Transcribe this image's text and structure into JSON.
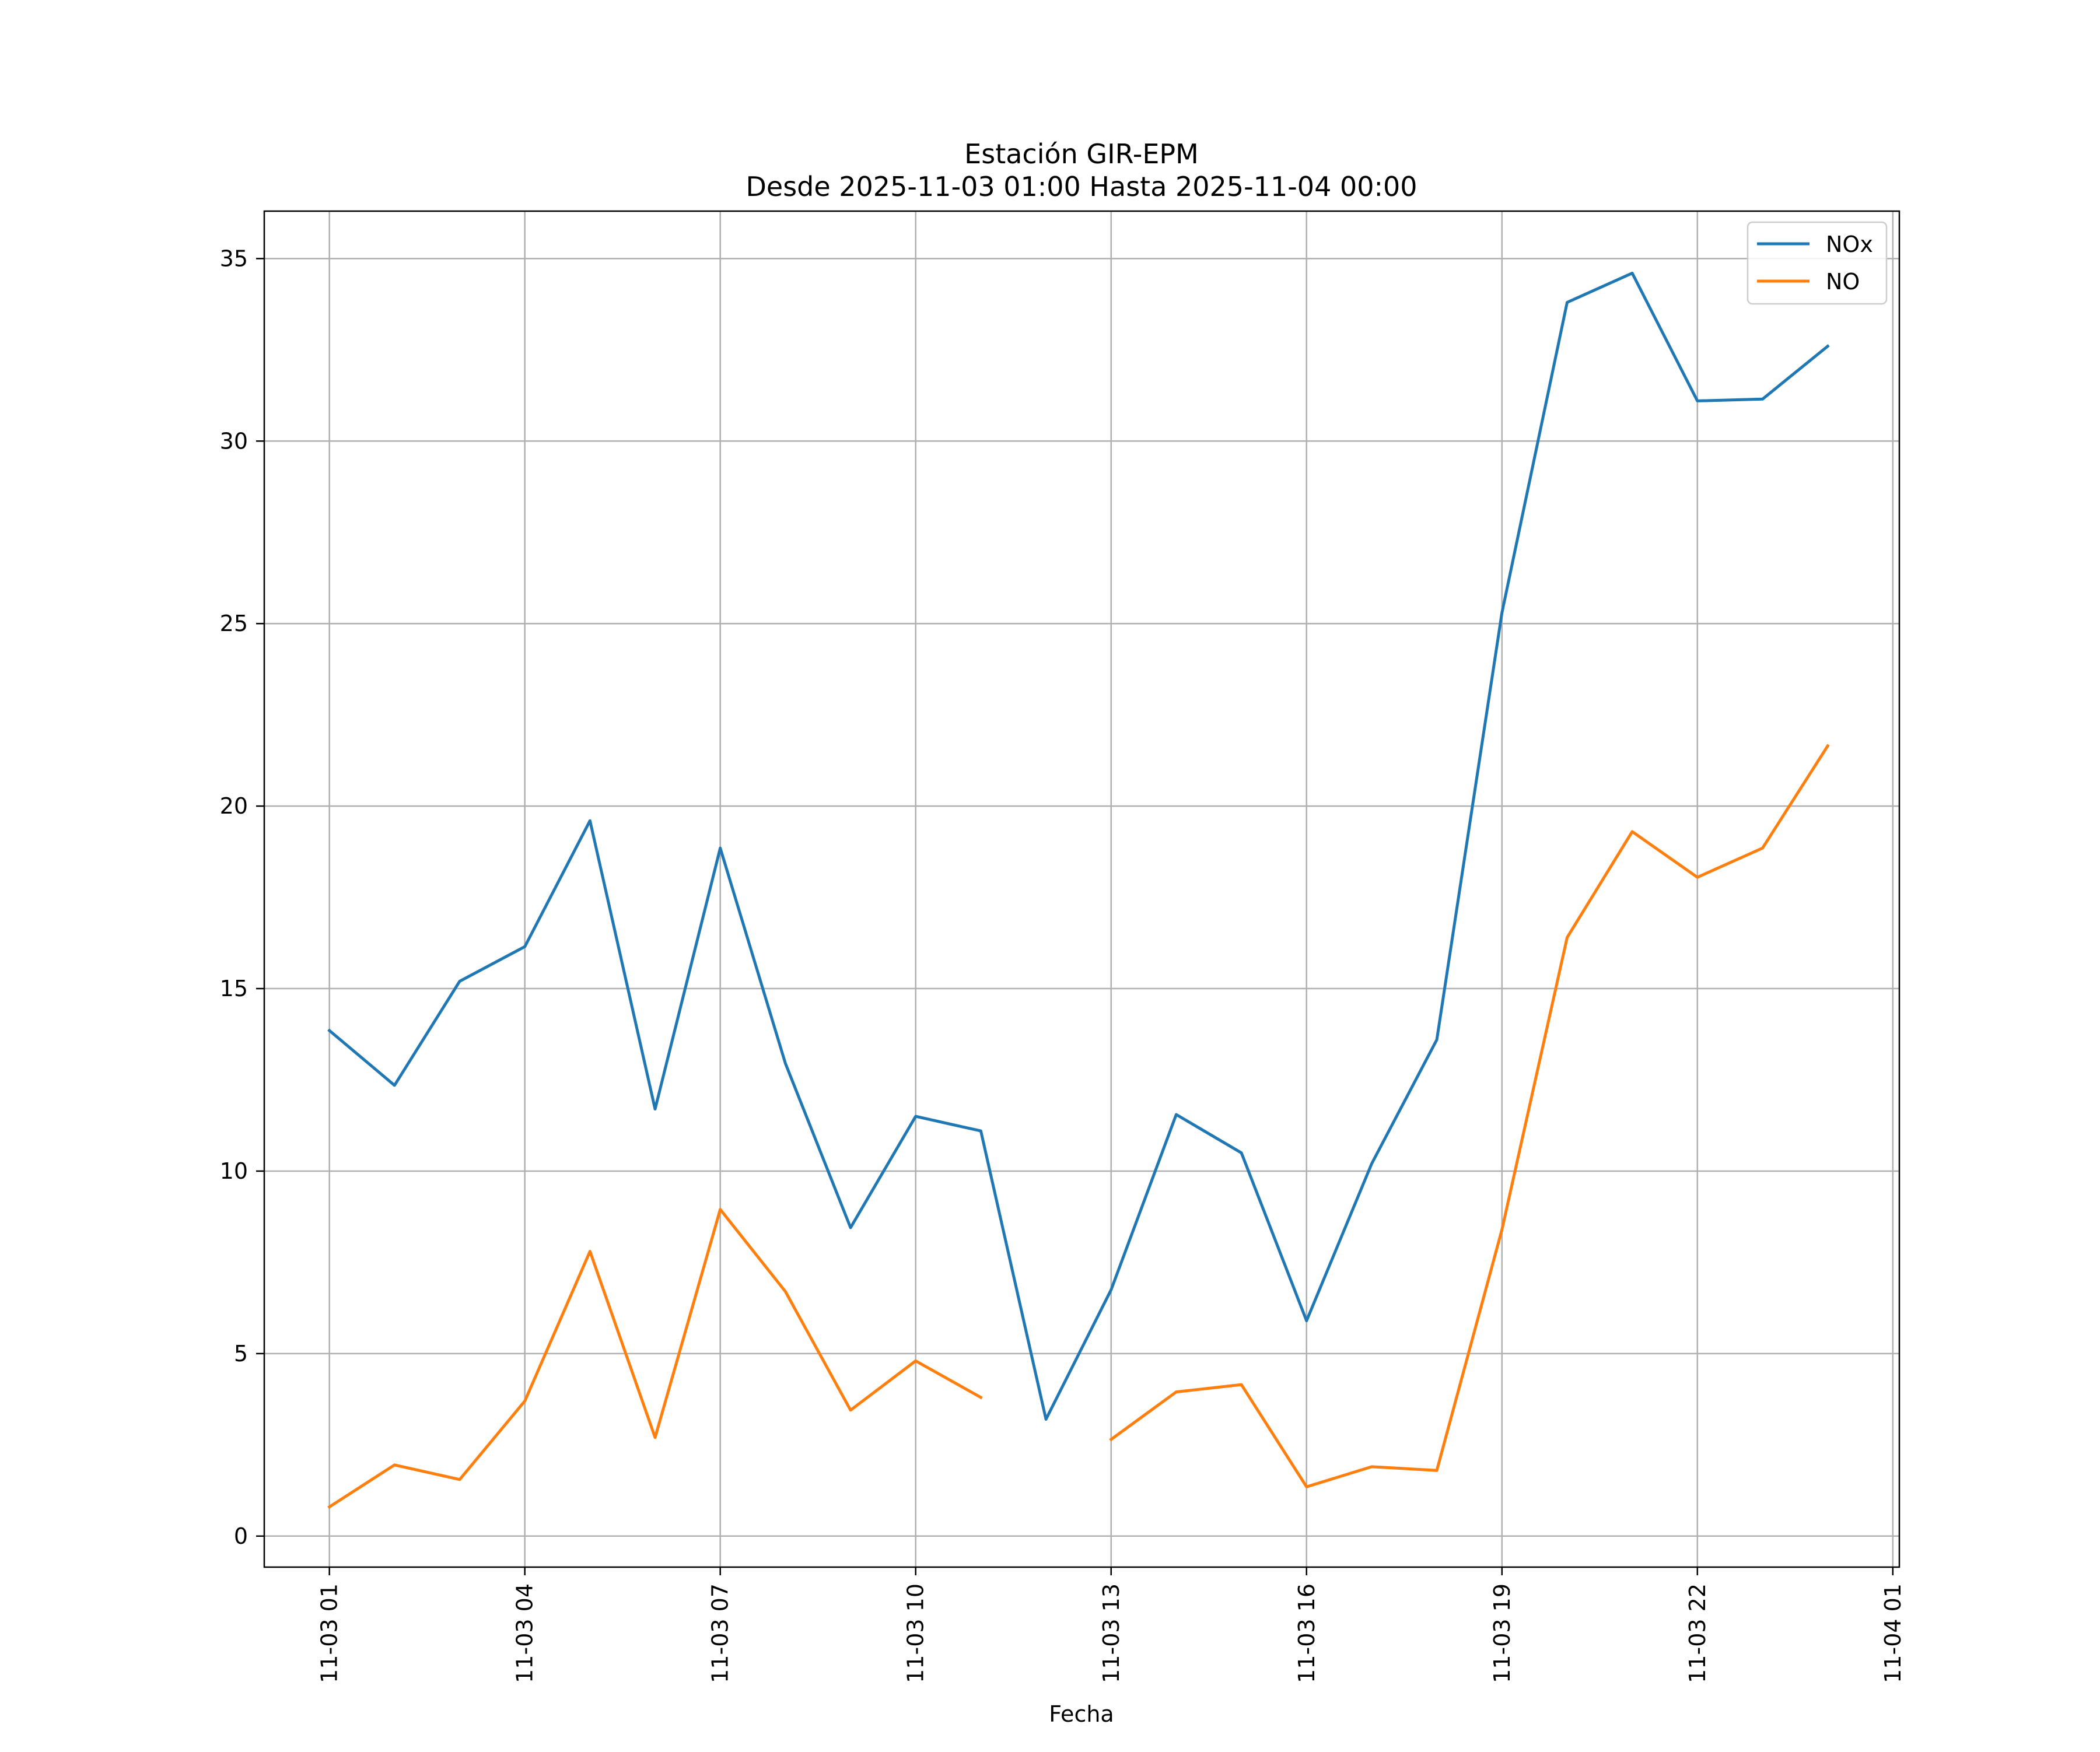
{
  "chart_data": {
    "type": "line",
    "title": [
      "Estación GIR-EPM",
      "Desde 2025-11-03 01:00 Hasta 2025-11-04 00:00"
    ],
    "xlabel": "Fecha",
    "ylabel": "",
    "x": [
      "11-03 01",
      "11-03 02",
      "11-03 03",
      "11-03 04",
      "11-03 05",
      "11-03 06",
      "11-03 07",
      "11-03 08",
      "11-03 09",
      "11-03 10",
      "11-03 11",
      "11-03 12",
      "11-03 13",
      "11-03 14",
      "11-03 15",
      "11-03 16",
      "11-03 17",
      "11-03 18",
      "11-03 19",
      "11-03 20",
      "11-03 21",
      "11-03 22",
      "11-03 23",
      "11-04 00"
    ],
    "x_ticks": [
      "11-03 01",
      "11-03 04",
      "11-03 07",
      "11-03 10",
      "11-03 13",
      "11-03 16",
      "11-03 19",
      "11-03 22",
      "11-04 01"
    ],
    "x_range": [
      "11-03 00:00",
      "11-04 01:06"
    ],
    "y_ticks": [
      0,
      5,
      10,
      15,
      20,
      25,
      30,
      35
    ],
    "ylim": [
      -0.85,
      36.3
    ],
    "grid": true,
    "legend_position": "top-right",
    "series": [
      {
        "name": "NOx",
        "color": "#1f77b4",
        "values": [
          13.85,
          12.35,
          15.2,
          16.15,
          19.6,
          11.7,
          18.85,
          12.95,
          8.45,
          11.5,
          11.1,
          3.2,
          6.75,
          11.55,
          10.5,
          5.9,
          10.2,
          13.6,
          25.3,
          33.8,
          34.6,
          31.1,
          31.15,
          32.6
        ]
      },
      {
        "name": "NO",
        "color": "#ff7f0e",
        "values": [
          0.8,
          1.95,
          1.55,
          3.7,
          7.8,
          2.7,
          8.95,
          6.7,
          3.45,
          4.8,
          3.8,
          null,
          2.65,
          3.95,
          4.15,
          1.35,
          1.9,
          1.8,
          8.4,
          16.4,
          19.3,
          18.05,
          18.85,
          21.65
        ]
      }
    ]
  }
}
